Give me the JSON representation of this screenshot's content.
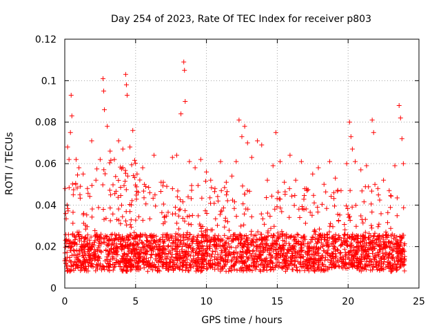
{
  "chart_data": {
    "type": "scatter",
    "title": "Day 254 of 2023, Rate Of TEC Index for receiver p803",
    "xlabel": "GPS time / hours",
    "ylabel": "ROTI / TECUs",
    "xlim": [
      0,
      25
    ],
    "ylim": [
      0,
      0.12
    ],
    "xticks": [
      0,
      5,
      10,
      15,
      20,
      25
    ],
    "xtick_labels": [
      "0",
      "5",
      "10",
      "15",
      "20",
      "25"
    ],
    "yticks": [
      0,
      0.02,
      0.04,
      0.06,
      0.08,
      0.1,
      0.12
    ],
    "ytick_labels": [
      "0",
      "0.02",
      "0.04",
      "0.06",
      "0.08",
      "0.1",
      "0.12"
    ],
    "grid": true,
    "marker": "plus",
    "color": "#ff0000",
    "series": [
      {
        "name": "ROTI",
        "description": "dense scatter of ROTI samples over 0-24 h, mostly 0.005-0.04 TECU/s with spikes",
        "points": [
          [
            0.1,
            0.013
          ],
          [
            0.2,
            0.068
          ],
          [
            0.3,
            0.062
          ],
          [
            0.4,
            0.075
          ],
          [
            0.45,
            0.093
          ],
          [
            0.5,
            0.083
          ],
          [
            0.6,
            0.045
          ],
          [
            0.8,
            0.062
          ],
          [
            1.0,
            0.058
          ],
          [
            1.3,
            0.055
          ],
          [
            1.6,
            0.048
          ],
          [
            1.9,
            0.071
          ],
          [
            2.2,
            0.052
          ],
          [
            2.5,
            0.062
          ],
          [
            2.7,
            0.101
          ],
          [
            2.75,
            0.095
          ],
          [
            2.8,
            0.086
          ],
          [
            3.0,
            0.078
          ],
          [
            3.2,
            0.066
          ],
          [
            3.5,
            0.062
          ],
          [
            3.8,
            0.071
          ],
          [
            4.1,
            0.067
          ],
          [
            4.3,
            0.103
          ],
          [
            4.35,
            0.098
          ],
          [
            4.4,
            0.093
          ],
          [
            4.6,
            0.068
          ],
          [
            4.8,
            0.076
          ],
          [
            5.1,
            0.055
          ],
          [
            5.5,
            0.058
          ],
          [
            6.0,
            0.046
          ],
          [
            6.3,
            0.064
          ],
          [
            6.8,
            0.051
          ],
          [
            7.2,
            0.049
          ],
          [
            7.6,
            0.063
          ],
          [
            7.9,
            0.064
          ],
          [
            8.2,
            0.084
          ],
          [
            8.4,
            0.109
          ],
          [
            8.45,
            0.105
          ],
          [
            8.5,
            0.09
          ],
          [
            8.8,
            0.061
          ],
          [
            9.2,
            0.058
          ],
          [
            9.6,
            0.062
          ],
          [
            10.0,
            0.056
          ],
          [
            10.3,
            0.052
          ],
          [
            10.6,
            0.048
          ],
          [
            11.0,
            0.061
          ],
          [
            11.4,
            0.051
          ],
          [
            11.8,
            0.054
          ],
          [
            12.1,
            0.061
          ],
          [
            12.3,
            0.081
          ],
          [
            12.5,
            0.073
          ],
          [
            12.7,
            0.078
          ],
          [
            12.9,
            0.07
          ],
          [
            13.2,
            0.063
          ],
          [
            13.6,
            0.071
          ],
          [
            13.9,
            0.069
          ],
          [
            14.3,
            0.052
          ],
          [
            14.7,
            0.059
          ],
          [
            14.9,
            0.075
          ],
          [
            15.2,
            0.061
          ],
          [
            15.5,
            0.051
          ],
          [
            15.9,
            0.064
          ],
          [
            16.3,
            0.052
          ],
          [
            16.7,
            0.061
          ],
          [
            17.1,
            0.047
          ],
          [
            17.5,
            0.055
          ],
          [
            17.9,
            0.058
          ],
          [
            18.3,
            0.05
          ],
          [
            18.7,
            0.061
          ],
          [
            19.1,
            0.053
          ],
          [
            19.5,
            0.047
          ],
          [
            19.9,
            0.06
          ],
          [
            20.1,
            0.08
          ],
          [
            20.2,
            0.073
          ],
          [
            20.3,
            0.067
          ],
          [
            20.5,
            0.061
          ],
          [
            20.9,
            0.057
          ],
          [
            21.3,
            0.059
          ],
          [
            21.7,
            0.081
          ],
          [
            21.8,
            0.075
          ],
          [
            22.1,
            0.048
          ],
          [
            22.5,
            0.052
          ],
          [
            22.9,
            0.047
          ],
          [
            23.3,
            0.059
          ],
          [
            23.6,
            0.088
          ],
          [
            23.7,
            0.082
          ],
          [
            23.8,
            0.072
          ],
          [
            23.9,
            0.06
          ]
        ]
      }
    ]
  }
}
